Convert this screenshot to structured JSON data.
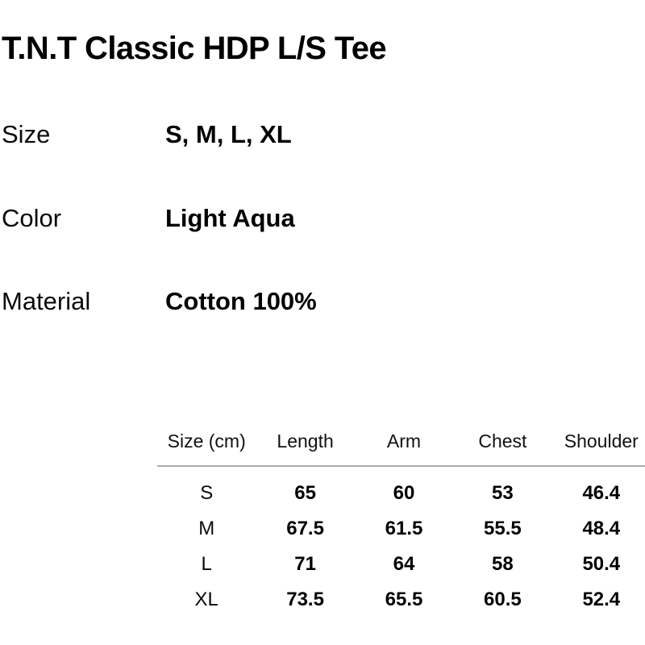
{
  "colors": {
    "background": "#ffffff",
    "text": "#000000",
    "divider": "#ababab"
  },
  "product": {
    "title": "T.N.T Classic HDP L/S Tee",
    "specs": [
      {
        "label": "Size",
        "value": "S, M, L, XL"
      },
      {
        "label": "Color",
        "value": "Light Aqua"
      },
      {
        "label": "Material",
        "value": "Cotton 100%"
      }
    ]
  },
  "size_table": {
    "columns": [
      "Size (cm)",
      "Length",
      "Arm",
      "Chest",
      "Shoulder"
    ],
    "rows": [
      {
        "cells": [
          "S",
          "65",
          "60",
          "53",
          "46.4"
        ]
      },
      {
        "cells": [
          "M",
          "67.5",
          "61.5",
          "55.5",
          "48.4"
        ]
      },
      {
        "cells": [
          "L",
          "71",
          "64",
          "58",
          "50.4"
        ]
      },
      {
        "cells": [
          "XL",
          "73.5",
          "65.5",
          "60.5",
          "52.4"
        ]
      }
    ]
  }
}
